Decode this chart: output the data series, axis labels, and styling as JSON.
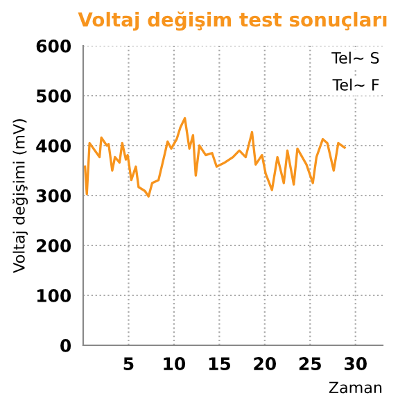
{
  "chart_data": {
    "type": "line",
    "title": "Voltaj değişim test sonuçları",
    "xlabel": "Zaman",
    "ylabel": "Voltaj değişimi (mV)",
    "annotations": [
      "Tel~ S",
      "Tel~ F"
    ],
    "series": [
      {
        "color": "#f7941d",
        "x": [
          0.2,
          0.4,
          0.7,
          1.8,
          2.0,
          2.6,
          2.8,
          3.2,
          3.5,
          4.0,
          4.3,
          4.7,
          4.9,
          5.3,
          5.8,
          6.1,
          6.8,
          7.2,
          7.6,
          8.3,
          8.9,
          9.3,
          9.7,
          10.3,
          10.7,
          11.2,
          11.7,
          12.1,
          12.4,
          12.8,
          13.5,
          14.2,
          14.7,
          15.6,
          16.5,
          17.2,
          17.9,
          18.6,
          19.0,
          19.7,
          20.1,
          20.8,
          21.4,
          22.1,
          22.5,
          23.2,
          23.6,
          24.6,
          25.3,
          25.7,
          26.4,
          26.9,
          27.6,
          28.1,
          28.8
        ],
        "values": [
          358,
          303,
          405,
          377,
          416,
          400,
          403,
          350,
          377,
          366,
          405,
          372,
          381,
          331,
          358,
          317,
          309,
          298,
          325,
          331,
          377,
          408,
          394,
          413,
          436,
          455,
          394,
          421,
          340,
          400,
          381,
          385,
          358,
          366,
          377,
          390,
          377,
          427,
          362,
          381,
          344,
          311,
          377,
          325,
          390,
          322,
          394,
          362,
          325,
          377,
          413,
          405,
          350,
          405,
          396
        ]
      }
    ],
    "xlim": [
      0,
      33
    ],
    "xticks": [
      5,
      10,
      15,
      20,
      25,
      30
    ],
    "ylim": [
      0,
      600
    ],
    "yticks": [
      0,
      100,
      200,
      300,
      400,
      500,
      600
    ],
    "grid": true,
    "line_style": "solid",
    "marker": "none"
  }
}
